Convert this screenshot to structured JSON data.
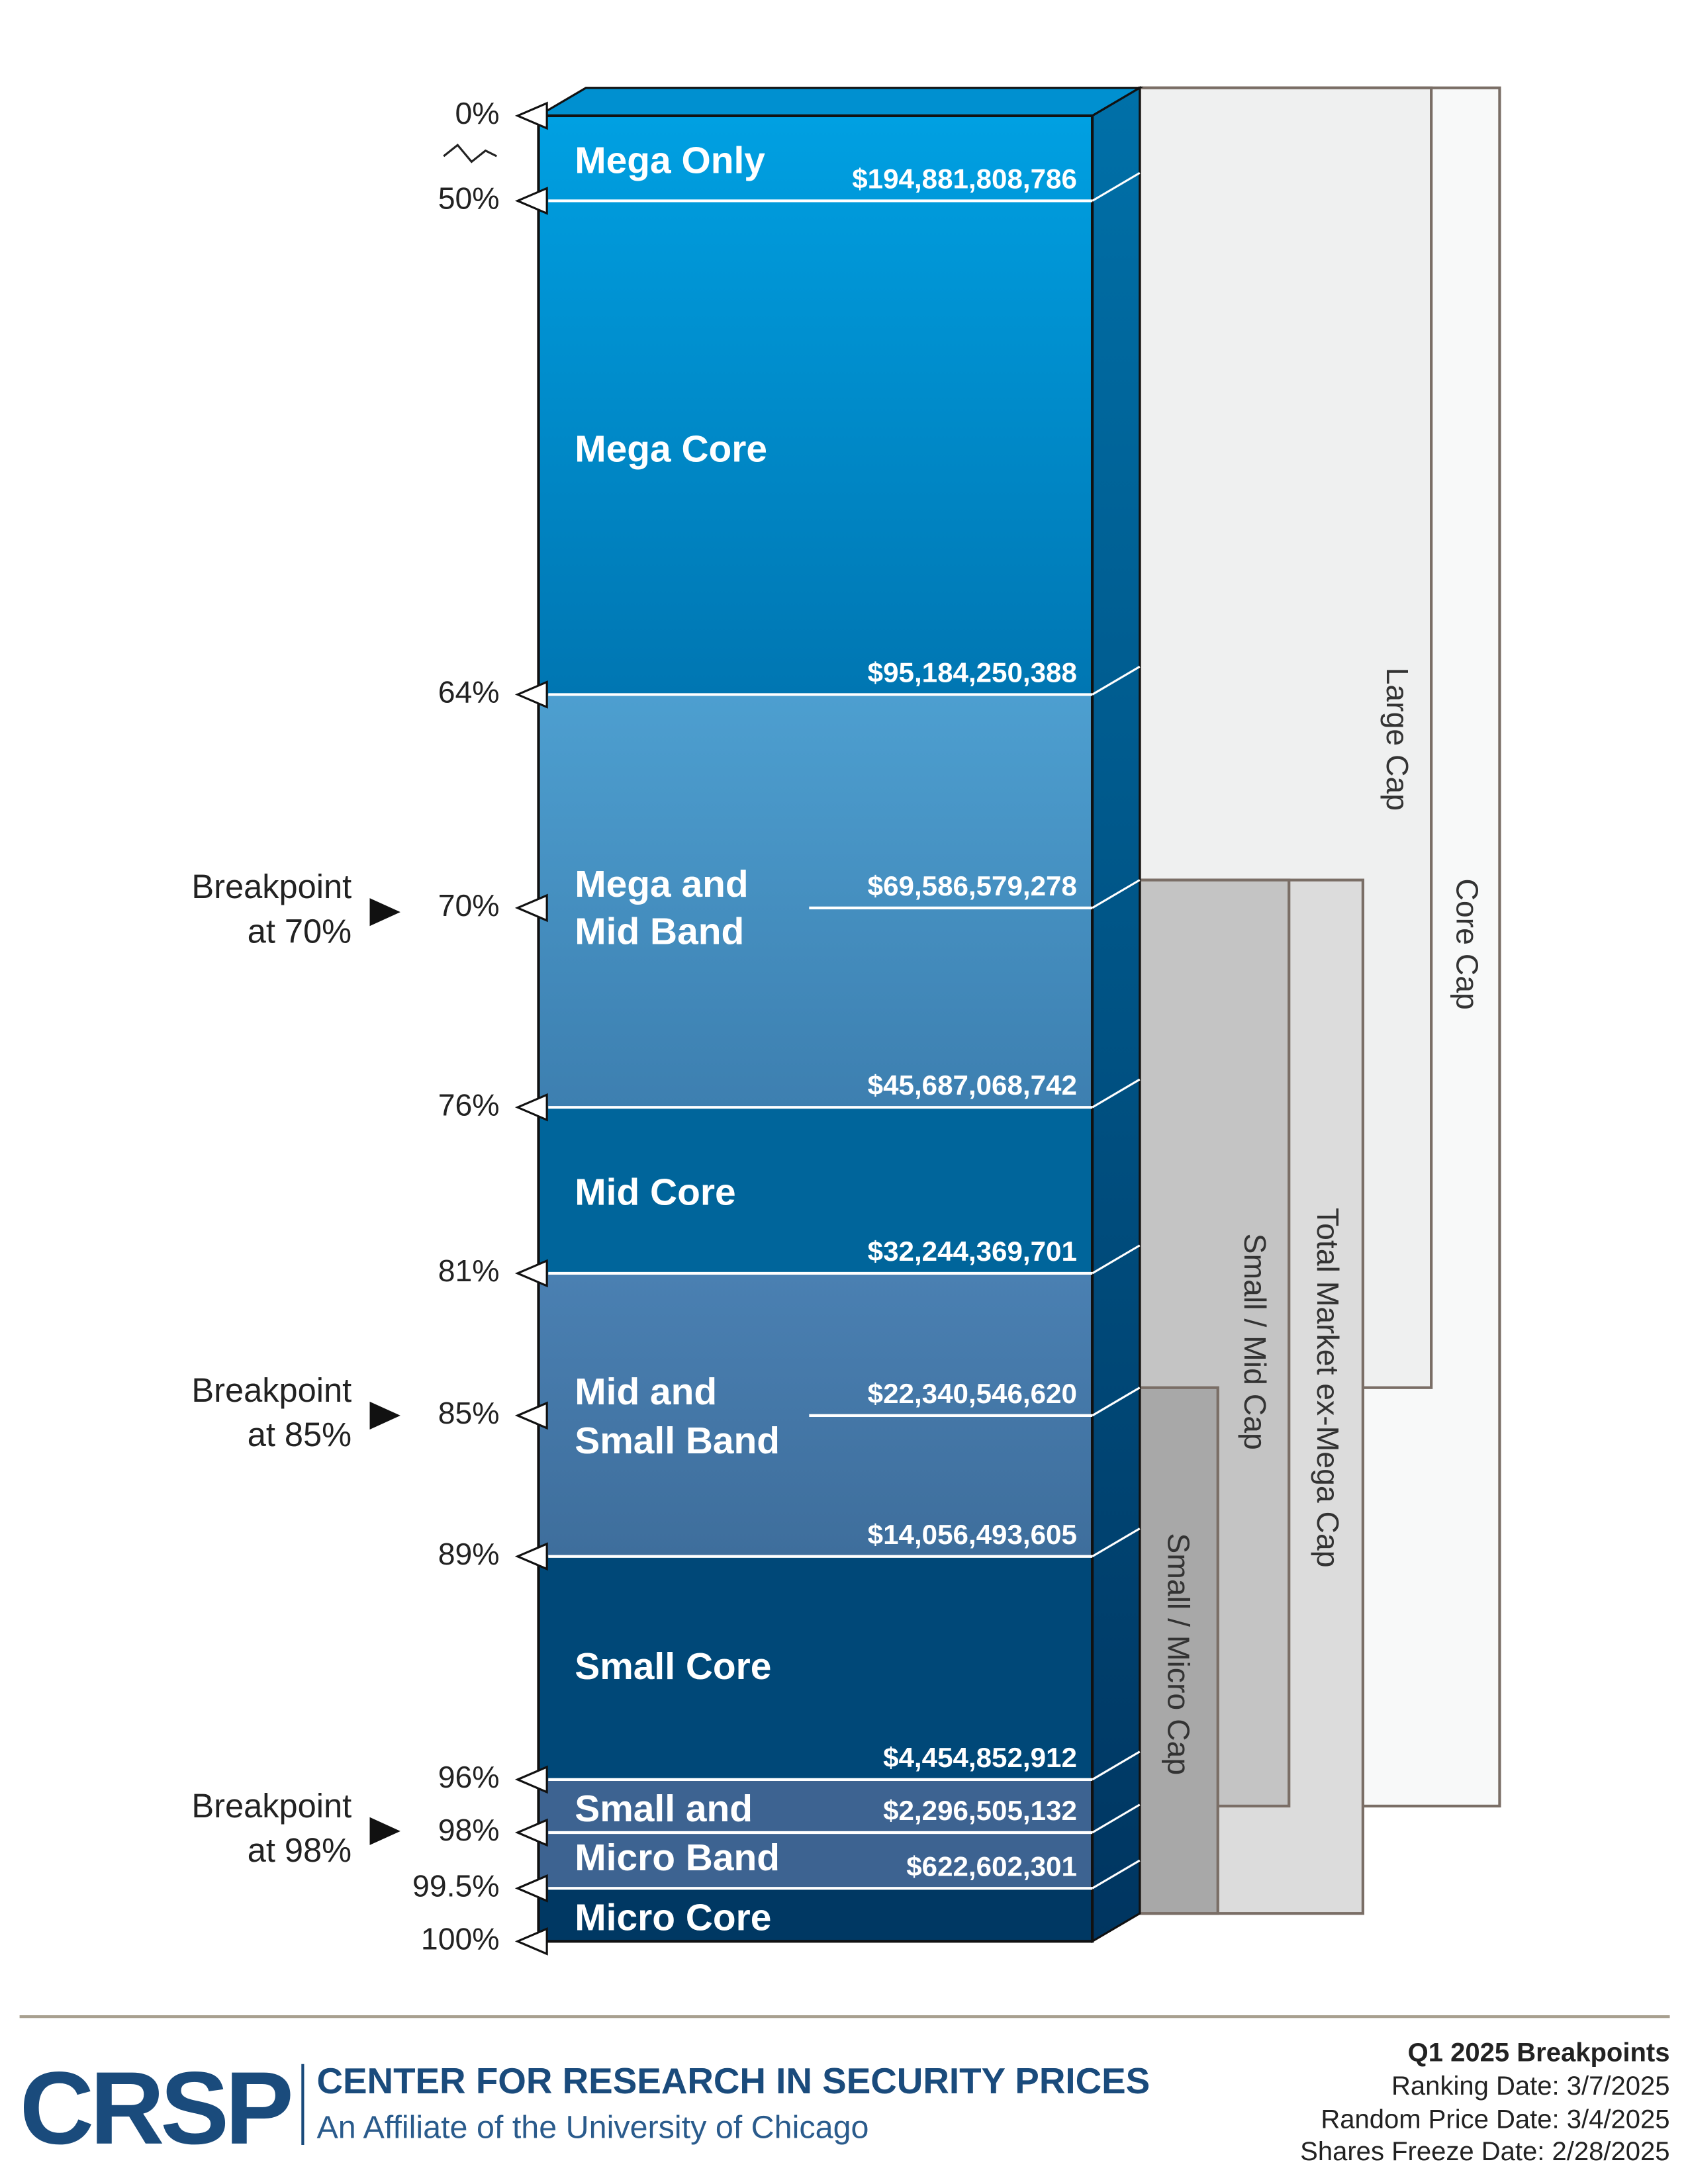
{
  "levels": [
    {
      "percent": "0%"
    },
    {
      "percent": "50%",
      "value": "$194,881,808,786"
    },
    {
      "percent": "64%",
      "value": "$95,184,250,388"
    },
    {
      "percent": "70%",
      "value": "$69,586,579,278"
    },
    {
      "percent": "76%",
      "value": "$45,687,068,742"
    },
    {
      "percent": "81%",
      "value": "$32,244,369,701"
    },
    {
      "percent": "85%",
      "value": "$22,340,546,620"
    },
    {
      "percent": "89%",
      "value": "$14,056,493,605"
    },
    {
      "percent": "96%",
      "value": "$4,454,852,912"
    },
    {
      "percent": "98%",
      "value": "$2,296,505,132"
    },
    {
      "percent": "99.5%",
      "value": "$622,602,301"
    },
    {
      "percent": "100%"
    }
  ],
  "segments": [
    {
      "lines": [
        "Mega Only"
      ]
    },
    {
      "lines": [
        "Mega Core"
      ]
    },
    {
      "lines": [
        "Mega and",
        "Mid Band"
      ]
    },
    {
      "lines": [
        "Mid Core"
      ]
    },
    {
      "lines": [
        "Mid and",
        "Small Band"
      ]
    },
    {
      "lines": [
        "Small Core"
      ]
    },
    {
      "lines": [
        "Small and",
        "Micro Band"
      ]
    },
    {
      "lines": [
        "Micro Core"
      ]
    }
  ],
  "breakpoints": [
    {
      "lines": [
        "Breakpoint",
        "at 70%"
      ]
    },
    {
      "lines": [
        "Breakpoint",
        "at 85%"
      ]
    },
    {
      "lines": [
        "Breakpoint",
        "at 98%"
      ]
    }
  ],
  "brackets": [
    "Core Cap",
    "Large Cap",
    "Total Market ex-Mega Cap",
    "Small / Mid Cap",
    "Small / Micro Cap"
  ],
  "footer": {
    "logo": "CRSP",
    "name": "CENTER FOR RESEARCH IN SECURITY PRICES",
    "affiliate": "An Affiliate of the University of Chicago",
    "title": "Q1 2025 Breakpoints",
    "dates": [
      "Ranking Date: 3/7/2025",
      "Random Price Date: 3/4/2025",
      "Shares Freeze Date: 2/28/2025"
    ]
  }
}
